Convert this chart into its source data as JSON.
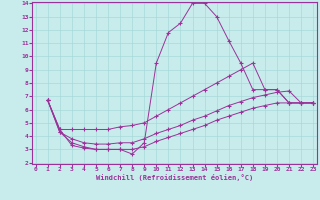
{
  "xlabel": "Windchill (Refroidissement éolien,°C)",
  "bg_color": "#c8ecec",
  "line_color": "#993399",
  "grid_color": "#a8d8d8",
  "xlim": [
    0,
    23
  ],
  "ylim": [
    2,
    14
  ],
  "xticks": [
    0,
    1,
    2,
    3,
    4,
    5,
    6,
    7,
    8,
    9,
    10,
    11,
    12,
    13,
    14,
    15,
    16,
    17,
    18,
    19,
    20,
    21,
    22,
    23
  ],
  "yticks": [
    2,
    3,
    4,
    5,
    6,
    7,
    8,
    9,
    10,
    11,
    12,
    13,
    14
  ],
  "series": [
    {
      "x": [
        1,
        2,
        3,
        4,
        5,
        6,
        7,
        8,
        9,
        10,
        11,
        12,
        13,
        14,
        15,
        16,
        17,
        18,
        19,
        20,
        21,
        22,
        23
      ],
      "y": [
        6.7,
        4.5,
        3.3,
        3.1,
        3.0,
        3.0,
        3.0,
        2.65,
        3.5,
        9.5,
        11.8,
        12.5,
        14.0,
        14.0,
        13.0,
        11.2,
        9.5,
        7.5,
        7.5,
        7.5,
        6.5,
        6.5,
        6.5
      ]
    },
    {
      "x": [
        1,
        2,
        3,
        4,
        5,
        6,
        7,
        8,
        9,
        10,
        11,
        12,
        13,
        14,
        15,
        16,
        17,
        18,
        19,
        20,
        21,
        22,
        23
      ],
      "y": [
        6.7,
        4.5,
        4.5,
        4.5,
        4.5,
        4.5,
        4.7,
        4.8,
        5.0,
        5.5,
        6.0,
        6.5,
        7.0,
        7.5,
        8.0,
        8.5,
        9.0,
        9.5,
        7.5,
        7.5,
        6.5,
        6.5,
        6.5
      ]
    },
    {
      "x": [
        1,
        2,
        3,
        4,
        5,
        6,
        7,
        8,
        9,
        10,
        11,
        12,
        13,
        14,
        15,
        16,
        17,
        18,
        19,
        20,
        21,
        22,
        23
      ],
      "y": [
        6.7,
        4.3,
        3.8,
        3.5,
        3.4,
        3.4,
        3.5,
        3.5,
        3.8,
        4.2,
        4.5,
        4.8,
        5.2,
        5.5,
        5.9,
        6.3,
        6.6,
        6.9,
        7.1,
        7.3,
        7.4,
        6.5,
        6.5
      ]
    },
    {
      "x": [
        1,
        2,
        3,
        4,
        5,
        6,
        7,
        8,
        9,
        10,
        11,
        12,
        13,
        14,
        15,
        16,
        17,
        18,
        19,
        20,
        21,
        22,
        23
      ],
      "y": [
        6.7,
        4.3,
        3.5,
        3.2,
        3.0,
        3.0,
        3.0,
        3.0,
        3.2,
        3.6,
        3.9,
        4.2,
        4.5,
        4.8,
        5.2,
        5.5,
        5.8,
        6.1,
        6.3,
        6.5,
        6.5,
        6.5,
        6.5
      ]
    }
  ]
}
